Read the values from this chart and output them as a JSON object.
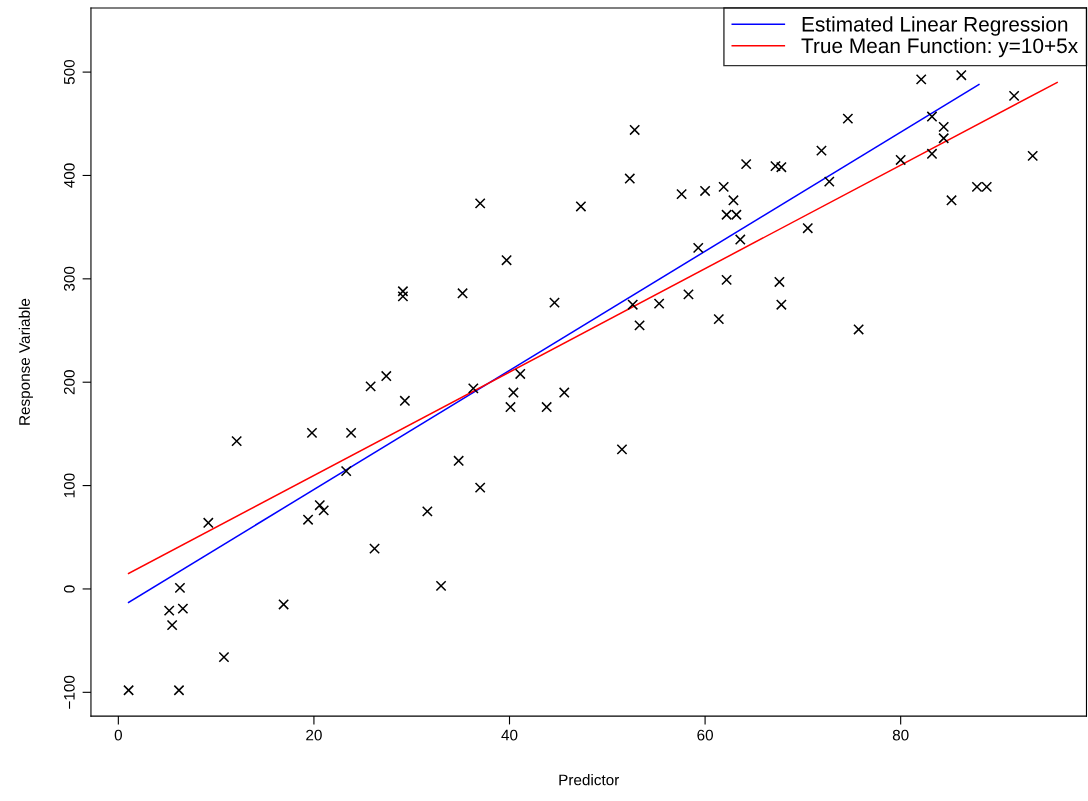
{
  "chart_data": {
    "type": "scatter",
    "xlabel": "Predictor",
    "ylabel": "Response Variable",
    "xlim": [
      -2.8,
      99
    ],
    "ylim": [
      -123,
      562
    ],
    "xticks": [
      0,
      20,
      40,
      60,
      80
    ],
    "yticks": [
      {
        "value": -100,
        "label": "−100"
      },
      0,
      100,
      200,
      300,
      400,
      500
    ],
    "grid": false,
    "legend": "top right",
    "series": [
      {
        "color": "#000000",
        "marker": "cross",
        "x": [
          1.05,
          6.2,
          10.8,
          5.5,
          5.2,
          6.6,
          6.3,
          16.9,
          9.2,
          12.1,
          19.4,
          20.6,
          21.0,
          19.8,
          23.8,
          23.3,
          26.2,
          25.8,
          27.4,
          29.3,
          31.6,
          33.0,
          34.8,
          36.3,
          37.0,
          40.1,
          40.4,
          41.1,
          43.8,
          45.6,
          29.1,
          29.1,
          35.2,
          37.0,
          39.7,
          44.6,
          47.3,
          51.5,
          52.8,
          52.3,
          57.6,
          60.0,
          61.9,
          62.9,
          62.2,
          63.2,
          64.2,
          67.2,
          67.8,
          71.9,
          74.6,
          63.6,
          72.7,
          80.0,
          83.2,
          83.2,
          84.4,
          84.4,
          82.1,
          91.6,
          93.5,
          85.2,
          87.8,
          88.8,
          70.5,
          59.3,
          55.3,
          52.6,
          53.3,
          58.3,
          62.2,
          61.4,
          67.6,
          67.8,
          75.7,
          86.2
        ],
        "values": [
          -98,
          -98,
          -66,
          -35,
          -21,
          -19,
          1,
          -15,
          64,
          143,
          67,
          81,
          76,
          151,
          151,
          114,
          39,
          196,
          206,
          182,
          75,
          3,
          124,
          194,
          98,
          176,
          190,
          208,
          176,
          190,
          288,
          283,
          286,
          373,
          318,
          277,
          370,
          135,
          444,
          397,
          382,
          385,
          389,
          376,
          362,
          362,
          411,
          409,
          408,
          424,
          455,
          338,
          394,
          415,
          421,
          457,
          447,
          436,
          493,
          477,
          419,
          376,
          389,
          389,
          349,
          330,
          276,
          275,
          255,
          285,
          299,
          261,
          297,
          275,
          251,
          497
        ]
      },
      {
        "type": "line",
        "name": "Estimated Linear Regression",
        "color": "#0000ff",
        "x": [
          1.05,
          88.0
        ],
        "values": [
          -13,
          488
        ]
      },
      {
        "type": "line",
        "name": "True Mean Function: y=10+5x",
        "color": "#ff0000",
        "x": [
          1.05,
          96.0
        ],
        "values": [
          15,
          490
        ]
      }
    ]
  }
}
